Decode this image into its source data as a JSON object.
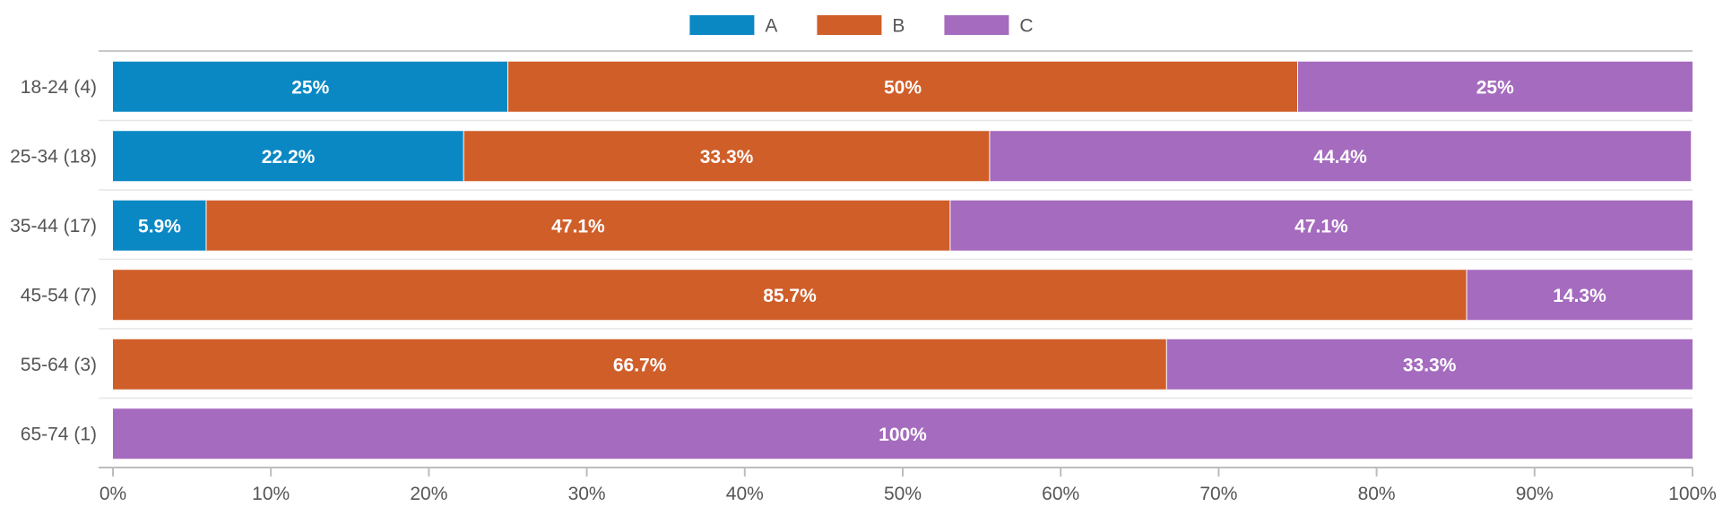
{
  "chart_data": {
    "type": "bar",
    "orientation": "horizontal",
    "stacked": true,
    "normalized": true,
    "categories": [
      "18-24 (4)",
      "25-34 (18)",
      "35-44 (17)",
      "45-54 (7)",
      "55-64 (3)",
      "65-74 (1)"
    ],
    "series": [
      {
        "name": "A",
        "color": "#0a88c4",
        "values": [
          25,
          22.2,
          5.9,
          0,
          0,
          0
        ],
        "labels": [
          "25%",
          "22.2%",
          "5.9%",
          "",
          "",
          ""
        ]
      },
      {
        "name": "B",
        "color": "#d05e29",
        "values": [
          50,
          33.3,
          47.1,
          85.7,
          66.7,
          0
        ],
        "labels": [
          "50%",
          "33.3%",
          "47.1%",
          "85.7%",
          "66.7%",
          ""
        ]
      },
      {
        "name": "C",
        "color": "#a56bbe",
        "values": [
          25,
          44.4,
          47.1,
          14.3,
          33.3,
          100
        ],
        "labels": [
          "25%",
          "44.4%",
          "47.1%",
          "14.3%",
          "33.3%",
          "100%"
        ]
      }
    ],
    "xlim": [
      0,
      100
    ],
    "x_ticks": [
      0,
      10,
      20,
      30,
      40,
      50,
      60,
      70,
      80,
      90,
      100
    ],
    "x_tick_labels": [
      "0%",
      "10%",
      "20%",
      "30%",
      "40%",
      "50%",
      "60%",
      "70%",
      "80%",
      "90%",
      "100%"
    ],
    "grid": true,
    "legend_position": "top-center",
    "title": "",
    "xlabel": "",
    "ylabel": ""
  }
}
